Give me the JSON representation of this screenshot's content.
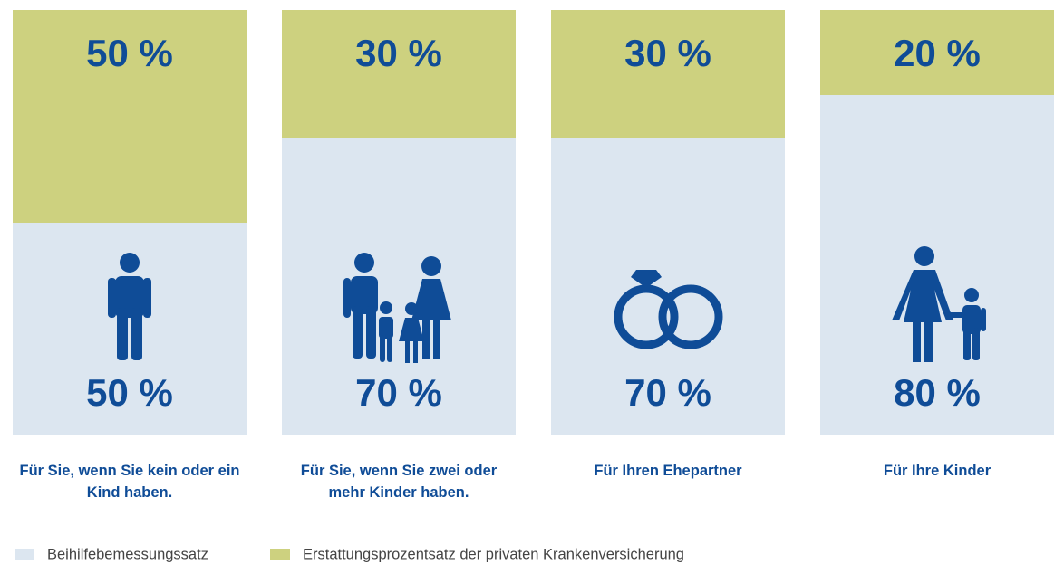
{
  "chart_data": {
    "type": "stacked-bar",
    "categories": [
      "Für Sie, wenn Sie kein oder ein Kind haben.",
      "Für Sie, wenn Sie zwei oder mehr Kinder haben.",
      "Für Ihren Ehepartner",
      "Für Ihre Kinder"
    ],
    "series": [
      {
        "name": "Beihilfebemessungssatz",
        "color": "#dce6f0",
        "values": [
          50,
          70,
          70,
          80
        ],
        "value_labels": [
          "50 %",
          "70 %",
          "70 %",
          "80 %"
        ]
      },
      {
        "name": "Erstattungsprozentsatz der privaten Krankenversicherung",
        "color": "#cdd17f",
        "values": [
          50,
          30,
          30,
          20
        ],
        "value_labels": [
          "50 %",
          "30 %",
          "30 %",
          "20 %"
        ]
      }
    ],
    "legend": "bottom-left"
  }
}
